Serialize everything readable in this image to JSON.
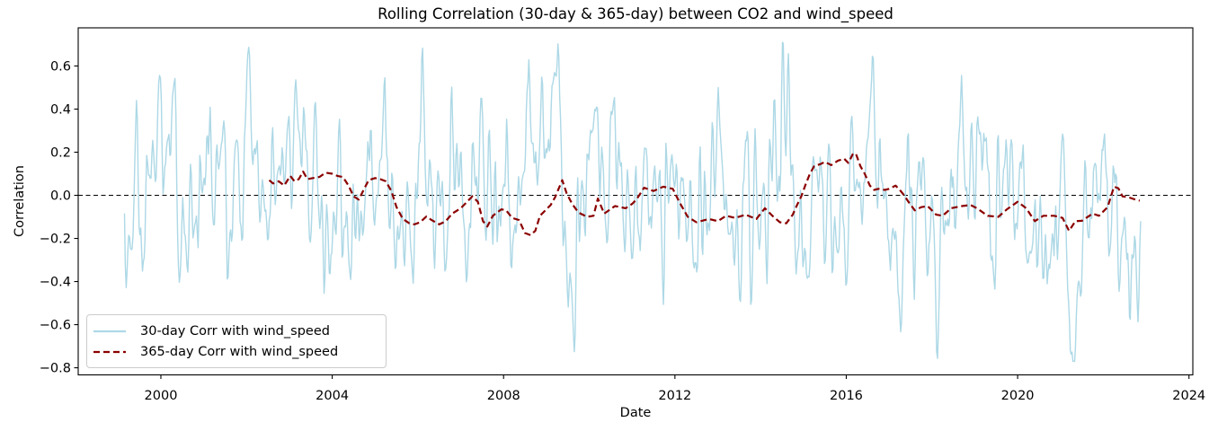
{
  "figure": {
    "title": "Rolling Correlation (30-day & 365-day) between CO2 and wind_speed",
    "xlabel": "Date",
    "ylabel": "Correlation"
  },
  "legend": {
    "position": "lower left",
    "entries": [
      {
        "label": "30-day Corr with wind_speed",
        "color": "#ADD8E6",
        "style": "solid"
      },
      {
        "label": "365-day Corr with wind_speed",
        "color": "#8B0000",
        "style": "dashed"
      }
    ]
  },
  "colors": {
    "series_30day": "#ADD8E6",
    "series_365day": "#8B0000",
    "zero_line": "#000000",
    "axis": "#000000",
    "background": "#ffffff",
    "legend_border": "#cccccc"
  },
  "chart_data": {
    "type": "line",
    "title": "Rolling Correlation (30-day & 365-day) between CO2 and wind_speed",
    "xlabel": "Date",
    "ylabel": "Correlation",
    "xlim": [
      1998.07,
      2024.09
    ],
    "ylim": [
      -0.833,
      0.777
    ],
    "xticks": [
      2000,
      2004,
      2008,
      2012,
      2016,
      2020,
      2024
    ],
    "yticks": [
      -0.8,
      -0.6,
      -0.4,
      -0.2,
      0.0,
      0.2,
      0.4,
      0.6
    ],
    "grid": false,
    "legend_position": "lower left",
    "zero_line": {
      "y": 0.0,
      "color": "#000000",
      "style": "dashed",
      "width": 1
    },
    "series": [
      {
        "name": "30-day Corr with wind_speed",
        "color": "#ADD8E6",
        "style": "solid",
        "line_width": 1.4,
        "x_start": 1999.15,
        "x_end": 2022.87,
        "value_range": [
          -0.77,
          0.71
        ],
        "character": "high-frequency rolling-correlation noise oscillating around 0, frequent swings of +/-0.3 to +/-0.6, max ~+0.70 near 2004.9, min ~-0.77 near 2008.8",
        "synthesis": {
          "seed": 97,
          "step_years": 0.02,
          "ar": 0.78,
          "sigma": 0.185,
          "smooth": true
        }
      },
      {
        "name": "365-day Corr with wind_speed",
        "color": "#8B0000",
        "style": "dashed",
        "line_width": 2.2,
        "points": [
          [
            2002.53,
            0.07
          ],
          [
            2002.62,
            0.055
          ],
          [
            2002.75,
            0.065
          ],
          [
            2002.88,
            0.045
          ],
          [
            2003.02,
            0.09
          ],
          [
            2003.12,
            0.065
          ],
          [
            2003.22,
            0.075
          ],
          [
            2003.32,
            0.11
          ],
          [
            2003.42,
            0.075
          ],
          [
            2003.55,
            0.08
          ],
          [
            2003.7,
            0.085
          ],
          [
            2003.85,
            0.105
          ],
          [
            2004.0,
            0.1
          ],
          [
            2004.12,
            0.09
          ],
          [
            2004.25,
            0.085
          ],
          [
            2004.38,
            0.045
          ],
          [
            2004.5,
            -0.005
          ],
          [
            2004.62,
            -0.02
          ],
          [
            2004.72,
            0.02
          ],
          [
            2004.85,
            0.07
          ],
          [
            2005.0,
            0.08
          ],
          [
            2005.12,
            0.075
          ],
          [
            2005.25,
            0.065
          ],
          [
            2005.38,
            0.02
          ],
          [
            2005.5,
            -0.055
          ],
          [
            2005.65,
            -0.11
          ],
          [
            2005.8,
            -0.13
          ],
          [
            2005.92,
            -0.135
          ],
          [
            2006.05,
            -0.125
          ],
          [
            2006.2,
            -0.098
          ],
          [
            2006.32,
            -0.115
          ],
          [
            2006.5,
            -0.135
          ],
          [
            2006.65,
            -0.12
          ],
          [
            2006.8,
            -0.085
          ],
          [
            2007.0,
            -0.06
          ],
          [
            2007.15,
            -0.03
          ],
          [
            2007.27,
            -0.005
          ],
          [
            2007.4,
            -0.03
          ],
          [
            2007.52,
            -0.12
          ],
          [
            2007.62,
            -0.145
          ],
          [
            2007.75,
            -0.095
          ],
          [
            2007.95,
            -0.065
          ],
          [
            2008.06,
            -0.07
          ],
          [
            2008.2,
            -0.105
          ],
          [
            2008.36,
            -0.115
          ],
          [
            2008.5,
            -0.175
          ],
          [
            2008.63,
            -0.185
          ],
          [
            2008.74,
            -0.165
          ],
          [
            2008.85,
            -0.095
          ],
          [
            2009.0,
            -0.065
          ],
          [
            2009.1,
            -0.045
          ],
          [
            2009.2,
            -0.01
          ],
          [
            2009.37,
            0.07
          ],
          [
            2009.47,
            0.01
          ],
          [
            2009.6,
            -0.04
          ],
          [
            2009.75,
            -0.08
          ],
          [
            2009.95,
            -0.1
          ],
          [
            2010.1,
            -0.095
          ],
          [
            2010.2,
            -0.015
          ],
          [
            2010.35,
            -0.085
          ],
          [
            2010.6,
            -0.05
          ],
          [
            2010.85,
            -0.06
          ],
          [
            2011.0,
            -0.04
          ],
          [
            2011.1,
            -0.02
          ],
          [
            2011.28,
            0.035
          ],
          [
            2011.5,
            0.02
          ],
          [
            2011.73,
            0.04
          ],
          [
            2011.95,
            0.03
          ],
          [
            2012.1,
            -0.03
          ],
          [
            2012.3,
            -0.1
          ],
          [
            2012.5,
            -0.125
          ],
          [
            2012.8,
            -0.11
          ],
          [
            2013.0,
            -0.12
          ],
          [
            2013.2,
            -0.095
          ],
          [
            2013.4,
            -0.105
          ],
          [
            2013.65,
            -0.09
          ],
          [
            2013.9,
            -0.11
          ],
          [
            2014.1,
            -0.06
          ],
          [
            2014.3,
            -0.1
          ],
          [
            2014.45,
            -0.125
          ],
          [
            2014.6,
            -0.13
          ],
          [
            2014.75,
            -0.09
          ],
          [
            2014.85,
            -0.045
          ],
          [
            2014.95,
            -0.005
          ],
          [
            2015.05,
            0.05
          ],
          [
            2015.15,
            0.1
          ],
          [
            2015.25,
            0.135
          ],
          [
            2015.4,
            0.145
          ],
          [
            2015.5,
            0.155
          ],
          [
            2015.65,
            0.14
          ],
          [
            2015.8,
            0.16
          ],
          [
            2015.95,
            0.17
          ],
          [
            2016.05,
            0.15
          ],
          [
            2016.15,
            0.19
          ],
          [
            2016.22,
            0.195
          ],
          [
            2016.33,
            0.135
          ],
          [
            2016.43,
            0.1
          ],
          [
            2016.55,
            0.045
          ],
          [
            2016.65,
            0.025
          ],
          [
            2016.75,
            0.03
          ],
          [
            2016.9,
            0.025
          ],
          [
            2017.0,
            0.03
          ],
          [
            2017.15,
            0.045
          ],
          [
            2017.25,
            0.025
          ],
          [
            2017.35,
            0.0
          ],
          [
            2017.45,
            -0.03
          ],
          [
            2017.6,
            -0.07
          ],
          [
            2017.75,
            -0.055
          ],
          [
            2017.9,
            -0.05
          ],
          [
            2018.1,
            -0.09
          ],
          [
            2018.25,
            -0.095
          ],
          [
            2018.45,
            -0.06
          ],
          [
            2018.7,
            -0.05
          ],
          [
            2018.9,
            -0.045
          ],
          [
            2019.05,
            -0.06
          ],
          [
            2019.3,
            -0.095
          ],
          [
            2019.55,
            -0.1
          ],
          [
            2019.75,
            -0.065
          ],
          [
            2020.0,
            -0.03
          ],
          [
            2020.2,
            -0.06
          ],
          [
            2020.4,
            -0.12
          ],
          [
            2020.6,
            -0.095
          ],
          [
            2020.85,
            -0.095
          ],
          [
            2021.05,
            -0.105
          ],
          [
            2021.2,
            -0.165
          ],
          [
            2021.35,
            -0.12
          ],
          [
            2021.5,
            -0.118
          ],
          [
            2021.75,
            -0.085
          ],
          [
            2021.9,
            -0.095
          ],
          [
            2022.1,
            -0.055
          ],
          [
            2022.25,
            0.04
          ],
          [
            2022.35,
            0.033
          ],
          [
            2022.45,
            -0.005
          ],
          [
            2022.6,
            -0.01
          ],
          [
            2022.75,
            -0.02
          ],
          [
            2022.85,
            -0.025
          ]
        ]
      }
    ]
  }
}
